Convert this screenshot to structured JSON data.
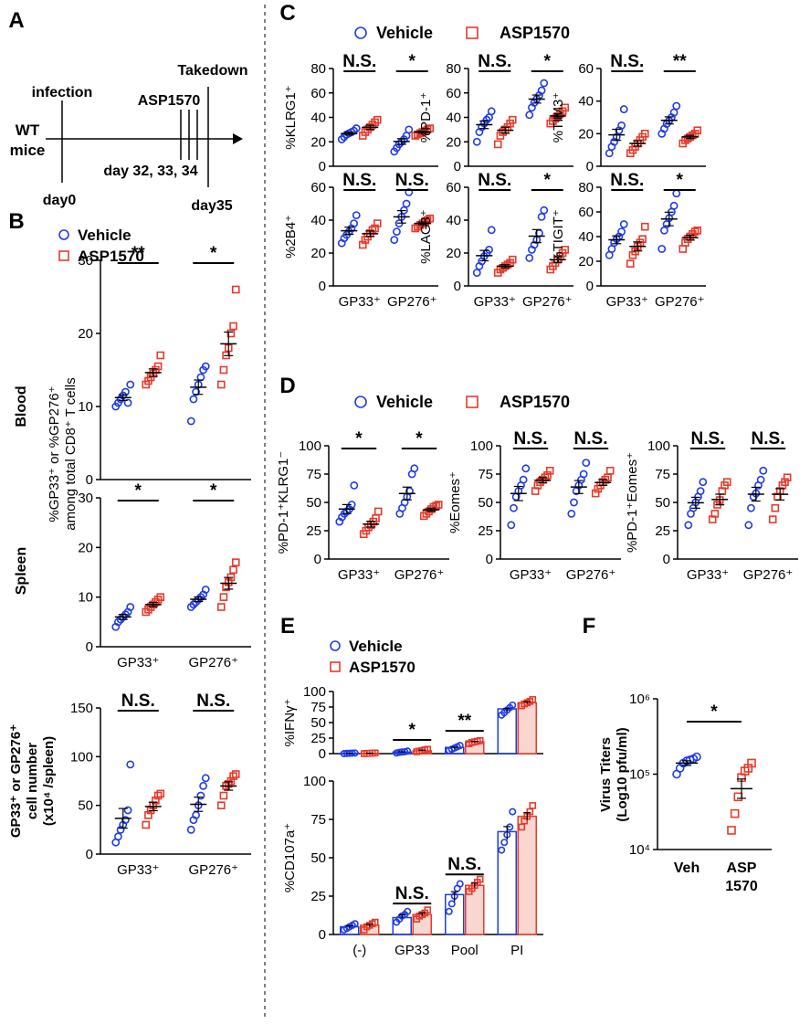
{
  "colors": {
    "vehicle": "#1e3ce6",
    "asp": "#e63a2a",
    "axis": "#000000"
  },
  "legend": {
    "vehicle": "Vehicle",
    "asp": "ASP1570"
  },
  "panel_letters": {
    "a": "A",
    "b": "B",
    "c": "C",
    "d": "D",
    "e": "E",
    "f": "F"
  },
  "timeline": {
    "infection": "infection",
    "takedown": "Takedown",
    "drug": "ASP1570",
    "mouse_line1": "WT",
    "mouse_line2": "mice",
    "day0": "day0",
    "doses": "day 32, 33, 34",
    "day35": "day35"
  },
  "groups": [
    "GP33⁺",
    "GP276⁺"
  ],
  "chart_data": [
    {
      "id": "b_blood",
      "type": "scatter",
      "tissue": "Blood",
      "ylim": [
        0,
        30
      ],
      "yticks": [
        0,
        10,
        20,
        30
      ],
      "categories": [
        "GP33⁺",
        "GP276⁺"
      ],
      "series": [
        {
          "name": "Vehicle",
          "groups": [
            [
              10,
              10.5,
              11,
              11.5,
              12,
              10.5,
              13
            ],
            [
              8,
              11,
              12,
              13,
              14,
              15,
              15.5
            ]
          ]
        },
        {
          "name": "ASP1570",
          "groups": [
            [
              13,
              13.5,
              14,
              14.5,
              15,
              15.5,
              17
            ],
            [
              13,
              15,
              17,
              18,
              20,
              21,
              26
            ]
          ]
        }
      ],
      "sig": [
        "**",
        "*"
      ]
    },
    {
      "id": "b_spleen",
      "type": "scatter",
      "tissue": "Spleen",
      "ylim": [
        0,
        30
      ],
      "yticks": [
        0,
        10,
        20,
        30
      ],
      "categories": [
        "GP33⁺",
        "GP276⁺"
      ],
      "series": [
        {
          "name": "Vehicle",
          "groups": [
            [
              4,
              5,
              5.5,
              6,
              6.5,
              7,
              8
            ],
            [
              8,
              8.5,
              9,
              9.5,
              10,
              10.5,
              11.5
            ]
          ]
        },
        {
          "name": "ASP1570",
          "groups": [
            [
              7,
              7.5,
              8,
              8.5,
              9,
              9.5,
              10
            ],
            [
              8,
              10,
              12,
              13,
              14,
              15.5,
              17
            ]
          ]
        }
      ],
      "sig": [
        "*",
        "*"
      ]
    },
    {
      "id": "b_count",
      "type": "scatter",
      "ylim": [
        0,
        150
      ],
      "yticks": [
        0,
        50,
        100,
        150
      ],
      "ylabel": [
        "GP33⁺ or GP276⁺",
        "cell number",
        "(x10⁴ /spleen)"
      ],
      "categories": [
        "GP33⁺",
        "GP276⁺"
      ],
      "series": [
        {
          "name": "Vehicle",
          "groups": [
            [
              12,
              18,
              25,
              30,
              35,
              45,
              92
            ],
            [
              25,
              35,
              40,
              50,
              60,
              70,
              78
            ]
          ]
        },
        {
          "name": "ASP1570",
          "groups": [
            [
              30,
              40,
              45,
              50,
              55,
              60,
              62
            ],
            [
              50,
              60,
              70,
              72,
              75,
              80,
              82
            ]
          ]
        }
      ],
      "sig": [
        "N.S.",
        "N.S."
      ]
    },
    {
      "id": "c_klrg1",
      "type": "scatter",
      "ylabel": "%KLRG1⁺",
      "ylim": [
        0,
        80
      ],
      "yticks": [
        0,
        20,
        40,
        60,
        80
      ],
      "categories": [
        "GP33⁺",
        "GP276⁺"
      ],
      "series": [
        {
          "name": "Vehicle",
          "groups": [
            [
              22,
              24,
              26,
              27,
              28,
              29,
              31
            ],
            [
              12,
              15,
              18,
              20,
              22,
              25,
              30
            ]
          ]
        },
        {
          "name": "ASP1570",
          "groups": [
            [
              25,
              28,
              30,
              32,
              34,
              36,
              38
            ],
            [
              25,
              26,
              27,
              28,
              29,
              30,
              31
            ]
          ]
        }
      ],
      "sig": [
        "N.S.",
        "*"
      ]
    },
    {
      "id": "c_pd1",
      "type": "scatter",
      "ylabel": "%PD-1⁺",
      "ylim": [
        0,
        80
      ],
      "yticks": [
        0,
        20,
        40,
        60,
        80
      ],
      "categories": [
        "GP33⁺",
        "GP276⁺"
      ],
      "series": [
        {
          "name": "Vehicle",
          "groups": [
            [
              20,
              28,
              32,
              35,
              38,
              40,
              45
            ],
            [
              42,
              48,
              52,
              55,
              58,
              62,
              68
            ]
          ]
        },
        {
          "name": "ASP1570",
          "groups": [
            [
              18,
              25,
              28,
              30,
              32,
              35,
              38
            ],
            [
              35,
              37,
              39,
              41,
              43,
              45,
              48
            ]
          ]
        }
      ],
      "sig": [
        "N.S.",
        "*"
      ]
    },
    {
      "id": "c_tim3",
      "type": "scatter",
      "ylabel": "%TIM3⁺",
      "ylim": [
        0,
        60
      ],
      "yticks": [
        0,
        20,
        40,
        60
      ],
      "categories": [
        "GP33⁺",
        "GP276⁺"
      ],
      "series": [
        {
          "name": "Vehicle",
          "groups": [
            [
              8,
              12,
              15,
              18,
              22,
              25,
              35
            ],
            [
              20,
              23,
              26,
              28,
              30,
              33,
              37
            ]
          ]
        },
        {
          "name": "ASP1570",
          "groups": [
            [
              8,
              10,
              12,
              14,
              16,
              18,
              20
            ],
            [
              14,
              16,
              17,
              18,
              19,
              20,
              22
            ]
          ]
        }
      ],
      "sig": [
        "N.S.",
        "**"
      ]
    },
    {
      "id": "c_2b4",
      "type": "scatter",
      "ylabel": "%2B4⁺",
      "ylim": [
        0,
        60
      ],
      "yticks": [
        0,
        20,
        40,
        60
      ],
      "categories": [
        "GP33⁺",
        "GP276⁺"
      ],
      "series": [
        {
          "name": "Vehicle",
          "groups": [
            [
              26,
              29,
              31,
              33,
              35,
              38,
              43
            ],
            [
              28,
              33,
              38,
              42,
              46,
              50,
              57
            ]
          ]
        },
        {
          "name": "ASP1570",
          "groups": [
            [
              25,
              28,
              30,
              32,
              34,
              35,
              38
            ],
            [
              35,
              36,
              37,
              38,
              39,
              40,
              41
            ]
          ]
        }
      ],
      "sig": [
        "N.S.",
        "N.S."
      ]
    },
    {
      "id": "c_lag3",
      "type": "scatter",
      "ylabel": "%LAG3⁺",
      "ylim": [
        0,
        60
      ],
      "yticks": [
        0,
        20,
        40,
        60
      ],
      "categories": [
        "GP33⁺",
        "GP276⁺"
      ],
      "series": [
        {
          "name": "Vehicle",
          "groups": [
            [
              8,
              12,
              15,
              18,
              20,
              22,
              34
            ],
            [
              17,
              22,
              25,
              28,
              32,
              42,
              46
            ]
          ]
        },
        {
          "name": "ASP1570",
          "groups": [
            [
              8,
              10,
              11,
              12,
              13,
              14,
              16
            ],
            [
              10,
              12,
              14,
              16,
              18,
              20,
              22
            ]
          ]
        }
      ],
      "sig": [
        "N.S.",
        "*"
      ]
    },
    {
      "id": "c_tigit",
      "type": "scatter",
      "ylabel": "%TIGIT⁺",
      "ylim": [
        0,
        80
      ],
      "yticks": [
        0,
        20,
        40,
        60,
        80
      ],
      "categories": [
        "GP33⁺",
        "GP276⁺"
      ],
      "series": [
        {
          "name": "Vehicle",
          "groups": [
            [
              25,
              30,
              35,
              38,
              40,
              44,
              50
            ],
            [
              30,
              45,
              50,
              55,
              60,
              65,
              75
            ]
          ]
        },
        {
          "name": "ASP1570",
          "groups": [
            [
              18,
              25,
              28,
              32,
              35,
              38,
              48
            ],
            [
              30,
              35,
              38,
              40,
              42,
              44,
              45
            ]
          ]
        }
      ],
      "sig": [
        "N.S.",
        "*"
      ]
    },
    {
      "id": "d_pd1klrg1",
      "type": "scatter",
      "ylabel": "%PD-1⁺KLRG1⁻",
      "ylim": [
        0,
        100
      ],
      "yticks": [
        0,
        25,
        50,
        75,
        100
      ],
      "categories": [
        "GP33⁺",
        "GP276⁺"
      ],
      "series": [
        {
          "name": "Vehicle",
          "groups": [
            [
              33,
              37,
              40,
              42,
              44,
              48,
              65
            ],
            [
              40,
              45,
              50,
              55,
              60,
              75,
              80
            ]
          ]
        },
        {
          "name": "ASP1570",
          "groups": [
            [
              22,
              25,
              28,
              30,
              33,
              36,
              42
            ],
            [
              38,
              40,
              42,
              44,
              46,
              47,
              48
            ]
          ]
        }
      ],
      "sig": [
        "*",
        "*"
      ]
    },
    {
      "id": "d_eomes",
      "type": "scatter",
      "ylabel": "%Eomes⁺",
      "ylim": [
        0,
        100
      ],
      "yticks": [
        0,
        25,
        50,
        75,
        100
      ],
      "categories": [
        "GP33⁺",
        "GP276⁺"
      ],
      "series": [
        {
          "name": "Vehicle",
          "groups": [
            [
              30,
              45,
              55,
              60,
              65,
              70,
              80
            ],
            [
              40,
              50,
              60,
              65,
              70,
              75,
              85
            ]
          ]
        },
        {
          "name": "ASP1570",
          "groups": [
            [
              60,
              65,
              68,
              70,
              72,
              74,
              78
            ],
            [
              58,
              62,
              65,
              68,
              70,
              72,
              78
            ]
          ]
        }
      ],
      "sig": [
        "N.S.",
        "N.S."
      ]
    },
    {
      "id": "d_pd1eomes",
      "type": "scatter",
      "ylabel": "%PD-1⁺Eomes⁺",
      "ylim": [
        0,
        100
      ],
      "yticks": [
        0,
        25,
        50,
        75,
        100
      ],
      "categories": [
        "GP33⁺",
        "GP276⁺"
      ],
      "series": [
        {
          "name": "Vehicle",
          "groups": [
            [
              30,
              40,
              45,
              50,
              55,
              60,
              68
            ],
            [
              30,
              45,
              55,
              58,
              65,
              70,
              78
            ]
          ]
        },
        {
          "name": "ASP1570",
          "groups": [
            [
              35,
              40,
              48,
              52,
              60,
              65,
              68
            ],
            [
              35,
              45,
              55,
              60,
              65,
              68,
              72
            ]
          ]
        }
      ],
      "sig": [
        "N.S.",
        "N.S."
      ]
    },
    {
      "id": "e_ifng",
      "type": "bar",
      "ylabel": "%IFNγ⁺",
      "ylim": [
        0,
        100
      ],
      "yticks": [
        0,
        25,
        50,
        75,
        100
      ],
      "categories": [
        "(-)",
        "GP33",
        "Pool",
        "PI"
      ],
      "series": [
        {
          "name": "Vehicle",
          "values": [
            0.5,
            2.5,
            10,
            72
          ],
          "points": [
            [
              0,
              0.3,
              0.5,
              0.8,
              1
            ],
            [
              1,
              2,
              2.5,
              3,
              4
            ],
            [
              5,
              7,
              9,
              11,
              13
            ],
            [
              62,
              66,
              70,
              74,
              78
            ]
          ]
        },
        {
          "name": "ASP1570",
          "values": [
            0.5,
            4.5,
            19,
            82
          ],
          "points": [
            [
              0,
              0.3,
              0.5,
              0.8,
              1
            ],
            [
              3,
              4,
              5,
              6,
              7
            ],
            [
              16,
              18,
              19,
              20,
              21
            ],
            [
              77,
              80,
              82,
              84,
              87
            ]
          ]
        }
      ],
      "sig": [
        "",
        "*",
        "**",
        ""
      ]
    },
    {
      "id": "e_cd107a",
      "type": "bar",
      "ylabel": "%CD107a⁺",
      "ylim": [
        0,
        100
      ],
      "yticks": [
        0,
        25,
        50,
        75,
        100
      ],
      "categories": [
        "(-)",
        "GP33",
        "Pool",
        "PI"
      ],
      "series": [
        {
          "name": "Vehicle",
          "values": [
            5,
            11,
            26,
            67
          ],
          "points": [
            [
              3,
              4,
              5,
              6,
              7
            ],
            [
              8,
              10,
              12,
              13,
              15
            ],
            [
              15,
              20,
              25,
              30,
              33
            ],
            [
              55,
              60,
              65,
              70,
              80
            ]
          ]
        },
        {
          "name": "ASP1570",
          "values": [
            6,
            13,
            32,
            77
          ],
          "points": [
            [
              3,
              5,
              6,
              7,
              8
            ],
            [
              10,
              12,
              13,
              14,
              16
            ],
            [
              28,
              30,
              32,
              34,
              36
            ],
            [
              70,
              74,
              77,
              80,
              84
            ]
          ]
        }
      ],
      "sig": [
        "",
        "N.S.",
        "N.S.",
        ""
      ]
    },
    {
      "id": "f_titers",
      "type": "scatter",
      "ylabel": [
        "Virus Titers",
        "(Log10 pfu/ml)"
      ],
      "yscale": "log",
      "ylim": [
        10000,
        1000000
      ],
      "yticks": [
        "10⁴",
        "10⁵",
        "10⁶"
      ],
      "categories": [
        "Veh",
        "ASP 1570"
      ],
      "series": [
        {
          "name": "Vehicle",
          "values": [
            100000,
            120000,
            140000,
            150000,
            155000,
            160000,
            170000
          ]
        },
        {
          "name": "ASP1570",
          "values": [
            18000,
            30000,
            50000,
            90000,
            110000,
            120000,
            140000
          ]
        }
      ],
      "sig": [
        "*"
      ]
    }
  ],
  "labels": {
    "b_ylabel_line1": "%GP33⁺ or %GP276⁺",
    "b_ylabel_line2": "among total CD8⁺ T cells",
    "f_cat2_line1": "ASP",
    "f_cat2_line2": "1570"
  }
}
